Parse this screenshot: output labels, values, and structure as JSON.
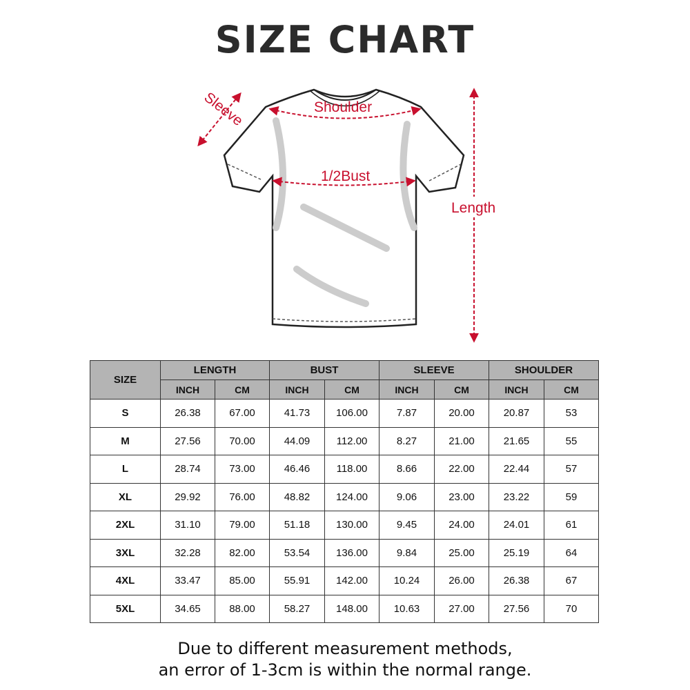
{
  "title": "SIZE CHART",
  "diagram": {
    "labels": {
      "sleeve": "Sleeve",
      "shoulder": "Shoulder",
      "bust": "1/2Bust",
      "length": "Length"
    },
    "arrow_color": "#c8102e"
  },
  "table": {
    "size_header": "SIZE",
    "groups": [
      "LENGTH",
      "BUST",
      "SLEEVE",
      "SHOULDER"
    ],
    "units": [
      "INCH",
      "CM",
      "INCH",
      "CM",
      "INCH",
      "CM",
      "INCH",
      "CM"
    ],
    "header_bg": "#b4b4b4",
    "rows": [
      {
        "size": "S",
        "values": [
          "26.38",
          "67.00",
          "41.73",
          "106.00",
          "7.87",
          "20.00",
          "20.87",
          "53"
        ]
      },
      {
        "size": "M",
        "values": [
          "27.56",
          "70.00",
          "44.09",
          "112.00",
          "8.27",
          "21.00",
          "21.65",
          "55"
        ]
      },
      {
        "size": "L",
        "values": [
          "28.74",
          "73.00",
          "46.46",
          "118.00",
          "8.66",
          "22.00",
          "22.44",
          "57"
        ]
      },
      {
        "size": "XL",
        "values": [
          "29.92",
          "76.00",
          "48.82",
          "124.00",
          "9.06",
          "23.00",
          "23.22",
          "59"
        ]
      },
      {
        "size": "2XL",
        "values": [
          "31.10",
          "79.00",
          "51.18",
          "130.00",
          "9.45",
          "24.00",
          "24.01",
          "61"
        ]
      },
      {
        "size": "3XL",
        "values": [
          "32.28",
          "82.00",
          "53.54",
          "136.00",
          "9.84",
          "25.00",
          "25.19",
          "64"
        ]
      },
      {
        "size": "4XL",
        "values": [
          "33.47",
          "85.00",
          "55.91",
          "142.00",
          "10.24",
          "26.00",
          "26.38",
          "67"
        ]
      },
      {
        "size": "5XL",
        "values": [
          "34.65",
          "88.00",
          "58.27",
          "148.00",
          "10.63",
          "27.00",
          "27.56",
          "70"
        ]
      }
    ]
  },
  "note": {
    "line1": "Due to different measurement methods,",
    "line2": "an error of 1-3cm is within the normal range."
  }
}
